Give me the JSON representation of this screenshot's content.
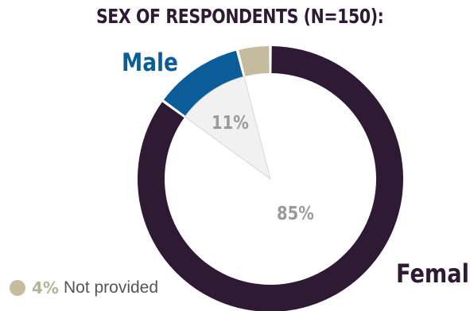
{
  "chart_data": {
    "type": "pie",
    "title": "SEX OF RESPONDENTS (N=150):",
    "slices": [
      {
        "label": "Not provided",
        "value": 4,
        "display": "4%",
        "color": "#c4bc9c"
      },
      {
        "label": "Female",
        "value": 85,
        "display": "85%",
        "color": "#2e1a33"
      },
      {
        "label": "Male",
        "value": 11,
        "display": "11%",
        "color": "#0b5d9a"
      }
    ],
    "legend_placement": "bottom-left"
  }
}
